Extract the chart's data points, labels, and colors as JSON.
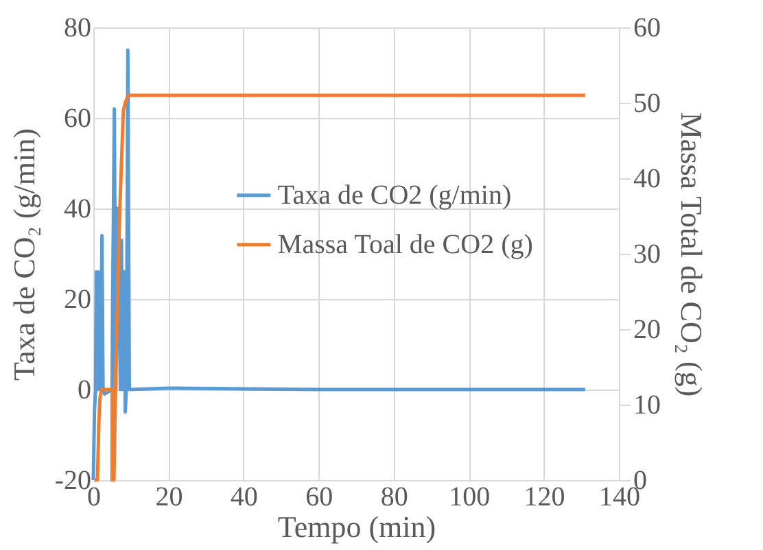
{
  "chart_data": {
    "type": "line",
    "xlabel": "Tempo (min)",
    "ylabel": "Taxa de CO₂ (g/min)",
    "y2label": "Massa Total de CO₂ (g)",
    "xlim": [
      0,
      140
    ],
    "xticks": [
      0,
      20,
      40,
      60,
      80,
      100,
      120,
      140
    ],
    "ylim": [
      -20,
      80
    ],
    "yticks": [
      -20,
      0,
      20,
      40,
      60,
      80
    ],
    "y2lim": [
      0,
      60
    ],
    "y2ticks": [
      0,
      10,
      20,
      30,
      40,
      50,
      60
    ],
    "grid": true,
    "legend": "right",
    "line_style": "solid",
    "marker": "none",
    "series": [
      {
        "name": "Taxa de CO2 (g/min)",
        "color": "#5b9bd5",
        "x": [
          0,
          0.3,
          0.6,
          0.8,
          1.1,
          1.4,
          1.7,
          2.0,
          2.3,
          2.6,
          3,
          5,
          5.1,
          5.6,
          6.0,
          6.3,
          6.7,
          7.2,
          7.5,
          7.8,
          8.2,
          8.5,
          8.8,
          9.2,
          9.6,
          20,
          35,
          60,
          131
        ],
        "values": [
          -20,
          -5,
          0,
          26,
          0,
          26,
          0,
          10,
          34,
          0,
          -1,
          0,
          15,
          62,
          0,
          40,
          30,
          0,
          33,
          0,
          26,
          -5,
          0,
          75,
          0,
          0.3,
          0.2,
          0,
          0
        ]
      },
      {
        "name": "Massa Toal de CO2 (g)",
        "color": "#ed7d31",
        "axis": "y2",
        "x": [
          0.3,
          1.1,
          1.5,
          1.8,
          2.2,
          5.0,
          5.0,
          5.5,
          6,
          7,
          8,
          8.5,
          9.3,
          131
        ],
        "values": [
          0,
          0,
          8,
          11,
          12,
          12,
          0,
          0,
          15,
          35,
          49,
          50,
          51,
          51
        ]
      }
    ]
  }
}
